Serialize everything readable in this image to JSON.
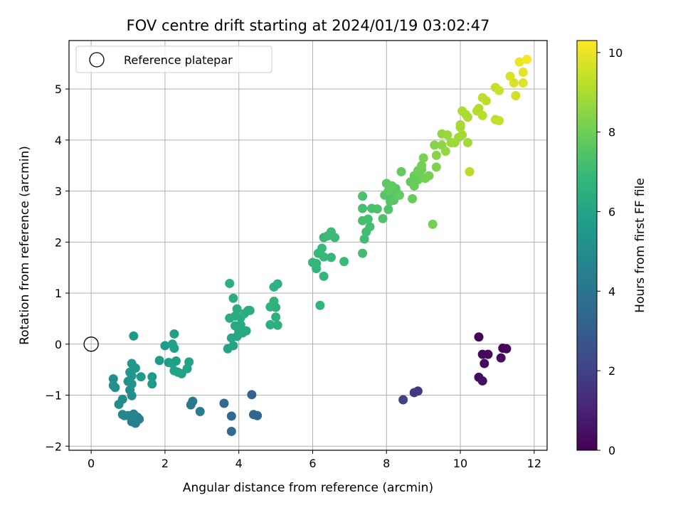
{
  "chart_data": {
    "type": "scatter",
    "title": "FOV centre drift starting at 2024/01/19 03:02:47",
    "xlabel": "Angular distance from reference (arcmin)",
    "ylabel": "Rotation from reference (arcmin)",
    "xlim": [
      -0.6,
      12.35
    ],
    "ylim": [
      -2.08,
      5.95
    ],
    "xticks": [
      0,
      2,
      4,
      6,
      8,
      10,
      12
    ],
    "yticks": [
      -2,
      -1,
      0,
      1,
      2,
      3,
      4,
      5
    ],
    "grid": true,
    "legend": {
      "placement": "top-left",
      "entries": [
        "Reference platepar"
      ]
    },
    "reference_point": {
      "x": 0,
      "y": 0
    },
    "colorbar": {
      "label": "Hours from first FF file",
      "range": [
        0,
        10.3
      ],
      "ticks": [
        0,
        2,
        4,
        6,
        8,
        10
      ],
      "colormap": "viridis"
    },
    "points": [
      {
        "x": 10.5,
        "y": 0.14,
        "h": 0.1
      },
      {
        "x": 10.6,
        "y": -0.2,
        "h": 0.2
      },
      {
        "x": 10.75,
        "y": -0.2,
        "h": 0.2
      },
      {
        "x": 10.65,
        "y": -0.38,
        "h": 0.3
      },
      {
        "x": 10.5,
        "y": -0.65,
        "h": 0.3
      },
      {
        "x": 10.6,
        "y": -0.72,
        "h": 0.4
      },
      {
        "x": 11.15,
        "y": -0.08,
        "h": 0.1
      },
      {
        "x": 11.25,
        "y": -0.09,
        "h": 0.2
      },
      {
        "x": 11.1,
        "y": -0.27,
        "h": 0.4
      },
      {
        "x": 8.75,
        "y": -0.95,
        "h": 1.6
      },
      {
        "x": 8.85,
        "y": -0.92,
        "h": 1.7
      },
      {
        "x": 8.45,
        "y": -1.09,
        "h": 2.0
      },
      {
        "x": 4.35,
        "y": -0.99,
        "h": 3.2
      },
      {
        "x": 4.4,
        "y": -1.38,
        "h": 3.4
      },
      {
        "x": 4.5,
        "y": -1.4,
        "h": 3.4
      },
      {
        "x": 3.6,
        "y": -1.16,
        "h": 3.5
      },
      {
        "x": 3.8,
        "y": -1.41,
        "h": 3.6
      },
      {
        "x": 3.8,
        "y": -1.71,
        "h": 3.5
      },
      {
        "x": 2.75,
        "y": -1.12,
        "h": 4.2
      },
      {
        "x": 2.7,
        "y": -1.19,
        "h": 4.2
      },
      {
        "x": 2.95,
        "y": -1.32,
        "h": 4.3
      },
      {
        "x": 1.1,
        "y": -1.52,
        "h": 4.4
      },
      {
        "x": 1.2,
        "y": -1.55,
        "h": 4.4
      },
      {
        "x": 1.25,
        "y": -1.43,
        "h": 4.5
      },
      {
        "x": 1.3,
        "y": -1.47,
        "h": 4.5
      },
      {
        "x": 1.15,
        "y": -1.37,
        "h": 4.6
      },
      {
        "x": 1.0,
        "y": -1.4,
        "h": 4.7
      },
      {
        "x": 0.85,
        "y": -1.38,
        "h": 4.8
      },
      {
        "x": 0.9,
        "y": -1.4,
        "h": 4.8
      },
      {
        "x": 0.75,
        "y": -1.18,
        "h": 5.0
      },
      {
        "x": 0.85,
        "y": -1.08,
        "h": 5.0
      },
      {
        "x": 1.1,
        "y": -1.01,
        "h": 5.1
      },
      {
        "x": 1.05,
        "y": -0.9,
        "h": 5.1
      },
      {
        "x": 0.6,
        "y": -0.81,
        "h": 5.2
      },
      {
        "x": 0.6,
        "y": -0.68,
        "h": 5.2
      },
      {
        "x": 0.65,
        "y": -0.85,
        "h": 5.2
      },
      {
        "x": 1.0,
        "y": -0.73,
        "h": 5.3
      },
      {
        "x": 1.1,
        "y": -0.78,
        "h": 5.3
      },
      {
        "x": 1.1,
        "y": -0.62,
        "h": 5.4
      },
      {
        "x": 1.05,
        "y": -0.55,
        "h": 5.4
      },
      {
        "x": 1.1,
        "y": -0.38,
        "h": 5.5
      },
      {
        "x": 1.2,
        "y": -0.47,
        "h": 5.5
      },
      {
        "x": 1.15,
        "y": 0.16,
        "h": 5.6
      },
      {
        "x": 1.35,
        "y": -0.64,
        "h": 5.5
      },
      {
        "x": 1.65,
        "y": -0.64,
        "h": 5.5
      },
      {
        "x": 1.65,
        "y": -0.78,
        "h": 5.5
      },
      {
        "x": 1.85,
        "y": -0.32,
        "h": 5.6
      },
      {
        "x": 2.0,
        "y": -0.03,
        "h": 5.7
      },
      {
        "x": 2.1,
        "y": -0.36,
        "h": 5.7
      },
      {
        "x": 2.25,
        "y": 0.2,
        "h": 5.8
      },
      {
        "x": 2.2,
        "y": 0.0,
        "h": 5.8
      },
      {
        "x": 2.25,
        "y": -0.08,
        "h": 5.8
      },
      {
        "x": 2.2,
        "y": -0.38,
        "h": 5.8
      },
      {
        "x": 2.3,
        "y": -0.33,
        "h": 5.8
      },
      {
        "x": 2.25,
        "y": -0.52,
        "h": 5.9
      },
      {
        "x": 2.35,
        "y": -0.55,
        "h": 5.9
      },
      {
        "x": 2.45,
        "y": -0.58,
        "h": 5.9
      },
      {
        "x": 2.6,
        "y": -0.48,
        "h": 5.9
      },
      {
        "x": 2.65,
        "y": -0.35,
        "h": 5.9
      },
      {
        "x": 3.7,
        "y": -0.09,
        "h": 6.0
      },
      {
        "x": 3.85,
        "y": -0.03,
        "h": 6.0
      },
      {
        "x": 3.8,
        "y": 0.12,
        "h": 6.1
      },
      {
        "x": 3.95,
        "y": 0.15,
        "h": 6.1
      },
      {
        "x": 4.0,
        "y": 0.25,
        "h": 6.1
      },
      {
        "x": 4.1,
        "y": 0.22,
        "h": 6.2
      },
      {
        "x": 4.2,
        "y": 0.26,
        "h": 6.2
      },
      {
        "x": 3.9,
        "y": 0.36,
        "h": 6.2
      },
      {
        "x": 4.05,
        "y": 0.38,
        "h": 6.2
      },
      {
        "x": 3.75,
        "y": 0.51,
        "h": 6.3
      },
      {
        "x": 3.9,
        "y": 0.55,
        "h": 6.3
      },
      {
        "x": 4.05,
        "y": 0.52,
        "h": 6.3
      },
      {
        "x": 4.15,
        "y": 0.6,
        "h": 6.4
      },
      {
        "x": 4.25,
        "y": 0.66,
        "h": 6.4
      },
      {
        "x": 4.3,
        "y": 0.66,
        "h": 6.4
      },
      {
        "x": 3.95,
        "y": 0.69,
        "h": 6.4
      },
      {
        "x": 3.85,
        "y": 0.9,
        "h": 6.4
      },
      {
        "x": 3.75,
        "y": 1.19,
        "h": 6.5
      },
      {
        "x": 4.85,
        "y": 0.38,
        "h": 6.5
      },
      {
        "x": 5.05,
        "y": 0.37,
        "h": 6.5
      },
      {
        "x": 5.0,
        "y": 0.53,
        "h": 6.5
      },
      {
        "x": 4.85,
        "y": 0.73,
        "h": 6.6
      },
      {
        "x": 5.0,
        "y": 0.72,
        "h": 6.6
      },
      {
        "x": 4.95,
        "y": 0.84,
        "h": 6.6
      },
      {
        "x": 4.95,
        "y": 1.12,
        "h": 6.6
      },
      {
        "x": 5.05,
        "y": 1.18,
        "h": 6.6
      },
      {
        "x": 6.2,
        "y": 0.76,
        "h": 6.7
      },
      {
        "x": 6.3,
        "y": 1.33,
        "h": 6.8
      },
      {
        "x": 6.0,
        "y": 1.6,
        "h": 6.8
      },
      {
        "x": 6.1,
        "y": 1.48,
        "h": 6.8
      },
      {
        "x": 6.1,
        "y": 1.58,
        "h": 6.8
      },
      {
        "x": 6.15,
        "y": 1.78,
        "h": 6.9
      },
      {
        "x": 6.25,
        "y": 1.88,
        "h": 6.9
      },
      {
        "x": 6.3,
        "y": 1.71,
        "h": 6.9
      },
      {
        "x": 6.5,
        "y": 1.7,
        "h": 6.9
      },
      {
        "x": 6.3,
        "y": 2.09,
        "h": 6.9
      },
      {
        "x": 6.4,
        "y": 2.12,
        "h": 7.0
      },
      {
        "x": 6.5,
        "y": 2.2,
        "h": 7.0
      },
      {
        "x": 6.6,
        "y": 2.09,
        "h": 7.0
      },
      {
        "x": 6.85,
        "y": 1.62,
        "h": 7.0
      },
      {
        "x": 7.35,
        "y": 1.78,
        "h": 7.1
      },
      {
        "x": 7.4,
        "y": 2.06,
        "h": 7.1
      },
      {
        "x": 7.45,
        "y": 2.2,
        "h": 7.1
      },
      {
        "x": 7.55,
        "y": 2.3,
        "h": 7.2
      },
      {
        "x": 7.35,
        "y": 2.42,
        "h": 7.2
      },
      {
        "x": 7.5,
        "y": 2.45,
        "h": 7.2
      },
      {
        "x": 7.35,
        "y": 2.66,
        "h": 7.2
      },
      {
        "x": 7.35,
        "y": 2.9,
        "h": 7.3
      },
      {
        "x": 7.6,
        "y": 2.66,
        "h": 7.3
      },
      {
        "x": 7.75,
        "y": 2.65,
        "h": 7.3
      },
      {
        "x": 7.9,
        "y": 2.46,
        "h": 7.4
      },
      {
        "x": 8.05,
        "y": 2.64,
        "h": 7.4
      },
      {
        "x": 8.1,
        "y": 2.8,
        "h": 7.5
      },
      {
        "x": 7.95,
        "y": 2.92,
        "h": 7.5
      },
      {
        "x": 8.15,
        "y": 2.9,
        "h": 7.5
      },
      {
        "x": 8.2,
        "y": 2.82,
        "h": 7.6
      },
      {
        "x": 8.3,
        "y": 2.95,
        "h": 7.6
      },
      {
        "x": 8.25,
        "y": 3.05,
        "h": 7.6
      },
      {
        "x": 8.0,
        "y": 3.15,
        "h": 7.7
      },
      {
        "x": 8.05,
        "y": 3.0,
        "h": 7.7
      },
      {
        "x": 8.15,
        "y": 3.1,
        "h": 7.7
      },
      {
        "x": 8.35,
        "y": 2.92,
        "h": 7.8
      },
      {
        "x": 8.4,
        "y": 3.38,
        "h": 7.8
      },
      {
        "x": 8.65,
        "y": 3.18,
        "h": 7.8
      },
      {
        "x": 8.7,
        "y": 2.85,
        "h": 7.9
      },
      {
        "x": 8.75,
        "y": 3.1,
        "h": 7.9
      },
      {
        "x": 8.75,
        "y": 3.3,
        "h": 7.9
      },
      {
        "x": 8.85,
        "y": 3.22,
        "h": 7.9
      },
      {
        "x": 8.85,
        "y": 3.4,
        "h": 8.0
      },
      {
        "x": 8.95,
        "y": 3.42,
        "h": 8.0
      },
      {
        "x": 8.95,
        "y": 3.26,
        "h": 8.0
      },
      {
        "x": 9.05,
        "y": 3.25,
        "h": 8.1
      },
      {
        "x": 9.15,
        "y": 3.3,
        "h": 8.1
      },
      {
        "x": 8.95,
        "y": 3.5,
        "h": 8.1
      },
      {
        "x": 9.0,
        "y": 3.65,
        "h": 8.2
      },
      {
        "x": 9.25,
        "y": 2.35,
        "h": 8.1
      },
      {
        "x": 9.3,
        "y": 3.9,
        "h": 8.4
      },
      {
        "x": 9.35,
        "y": 3.7,
        "h": 8.4
      },
      {
        "x": 9.35,
        "y": 3.47,
        "h": 8.3
      },
      {
        "x": 9.5,
        "y": 3.9,
        "h": 8.5
      },
      {
        "x": 9.5,
        "y": 4.12,
        "h": 8.6
      },
      {
        "x": 9.6,
        "y": 3.78,
        "h": 8.6
      },
      {
        "x": 9.65,
        "y": 4.1,
        "h": 8.7
      },
      {
        "x": 9.75,
        "y": 3.95,
        "h": 8.7
      },
      {
        "x": 9.85,
        "y": 3.95,
        "h": 8.8
      },
      {
        "x": 9.95,
        "y": 4.05,
        "h": 8.8
      },
      {
        "x": 10.0,
        "y": 4.25,
        "h": 8.9
      },
      {
        "x": 10.0,
        "y": 4.3,
        "h": 8.9
      },
      {
        "x": 10.05,
        "y": 4.1,
        "h": 8.9
      },
      {
        "x": 10.2,
        "y": 3.95,
        "h": 8.9
      },
      {
        "x": 10.05,
        "y": 4.57,
        "h": 9.0
      },
      {
        "x": 10.15,
        "y": 4.5,
        "h": 9.0
      },
      {
        "x": 10.2,
        "y": 4.45,
        "h": 9.0
      },
      {
        "x": 10.45,
        "y": 4.57,
        "h": 9.1
      },
      {
        "x": 10.5,
        "y": 4.62,
        "h": 9.1
      },
      {
        "x": 10.6,
        "y": 4.48,
        "h": 9.2
      },
      {
        "x": 10.6,
        "y": 4.83,
        "h": 9.3
      },
      {
        "x": 10.7,
        "y": 4.77,
        "h": 9.3
      },
      {
        "x": 10.95,
        "y": 5.03,
        "h": 9.4
      },
      {
        "x": 10.95,
        "y": 4.4,
        "h": 9.3
      },
      {
        "x": 11.05,
        "y": 4.38,
        "h": 9.4
      },
      {
        "x": 11.05,
        "y": 4.97,
        "h": 9.5
      },
      {
        "x": 10.25,
        "y": 3.38,
        "h": 9.2
      },
      {
        "x": 11.35,
        "y": 5.25,
        "h": 9.7
      },
      {
        "x": 11.45,
        "y": 5.12,
        "h": 9.7
      },
      {
        "x": 11.5,
        "y": 4.87,
        "h": 9.6
      },
      {
        "x": 11.6,
        "y": 5.53,
        "h": 10.0
      },
      {
        "x": 11.7,
        "y": 5.33,
        "h": 9.9
      },
      {
        "x": 11.7,
        "y": 5.12,
        "h": 9.8
      },
      {
        "x": 11.8,
        "y": 5.58,
        "h": 10.2
      }
    ]
  }
}
